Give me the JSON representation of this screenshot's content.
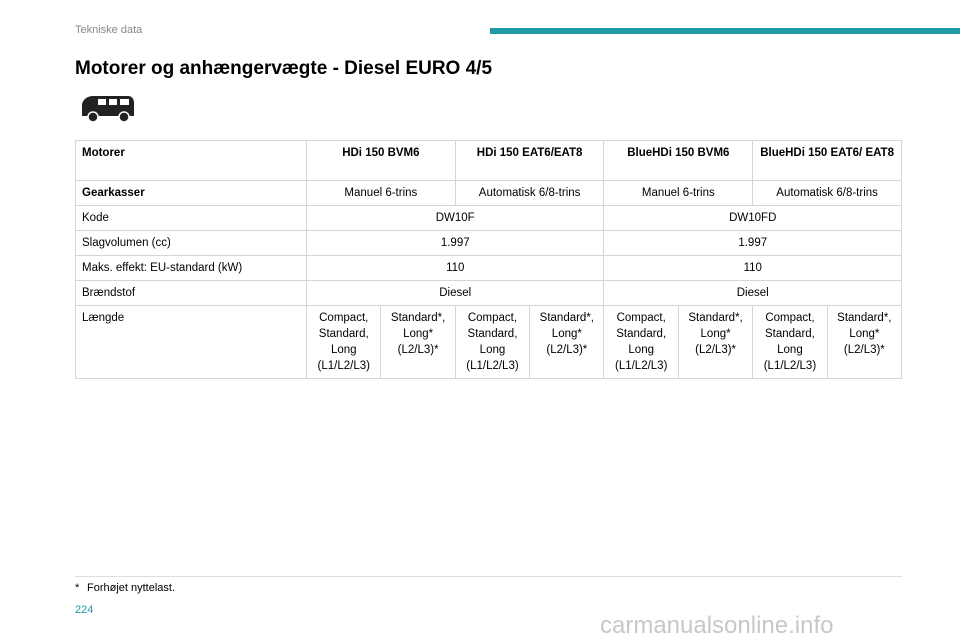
{
  "header": {
    "section": "Tekniske data",
    "title": "Motorer og anhængervægte - Diesel EURO 4/5"
  },
  "table": {
    "header": {
      "label": "Motorer",
      "columns": [
        "HDi 150 BVM6",
        "HDi 150 EAT6/EAT8",
        "BlueHDi 150 BVM6",
        "BlueHDi 150 EAT6/ EAT8"
      ]
    },
    "rows": [
      {
        "label": "Gearkasser",
        "cells": [
          "Manuel 6-trins",
          "Automatisk 6/8-trins",
          "Manuel 6-trins",
          "Automatisk 6/8-trins"
        ]
      },
      {
        "label": "Kode",
        "cells": [
          "DW10F",
          "DW10FD"
        ]
      },
      {
        "label": "Slagvolumen (cc)",
        "cells": [
          "1.997",
          "1.997"
        ]
      },
      {
        "label": "Maks. effekt: EU-standard (kW)",
        "cells": [
          "110",
          "110"
        ]
      },
      {
        "label": "Brændstof",
        "cells": [
          "Diesel",
          "Diesel"
        ]
      },
      {
        "label": "Længde",
        "cells": [
          "Compact, Standard, Long (L1/L2/L3)",
          "Standard*, Long* (L2/L3)*",
          "Compact, Standard, Long (L1/L2/L3)",
          "Standard*, Long* (L2/L3)*",
          "Compact, Standard, Long (L1/L2/L3)",
          "Standard*, Long* (L2/L3)*",
          "Compact, Standard, Long (L1/L2/L3)",
          "Standard*, Long* (L2/L3)*"
        ]
      }
    ]
  },
  "footnote": {
    "mark": "*",
    "text": "Forhøjet nyttelast."
  },
  "footer": {
    "page": "224",
    "watermark": "carmanualsonline.info"
  }
}
